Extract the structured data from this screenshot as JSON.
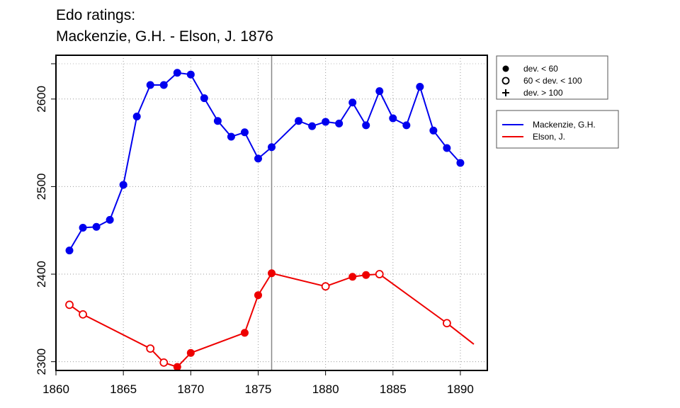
{
  "chart_data": {
    "type": "line",
    "title": "Edo ratings:",
    "subtitle": "Mackenzie, G.H. - Elson, J. 1876",
    "xlabel": "",
    "ylabel": "",
    "xlim": [
      1860,
      1892
    ],
    "ylim": [
      2290,
      2650
    ],
    "x_ticks": [
      1860,
      1865,
      1870,
      1875,
      1880,
      1885,
      1890
    ],
    "y_ticks": [
      2300,
      2400,
      2500,
      2600
    ],
    "grid": true,
    "vertical_marker_year": 1876,
    "legend_markers": [
      {
        "symbol": "filled-circle",
        "label": "dev. < 60"
      },
      {
        "symbol": "open-circle",
        "label": "60 < dev. < 100"
      },
      {
        "symbol": "plus",
        "label": "dev. > 100"
      }
    ],
    "legend_series_placement": "right, outside plot",
    "series": [
      {
        "name": "Mackenzie, G.H.",
        "color": "#0000ee",
        "points": [
          {
            "x": 1861,
            "y": 2427,
            "dev": "low"
          },
          {
            "x": 1862,
            "y": 2453,
            "dev": "low"
          },
          {
            "x": 1863,
            "y": 2454,
            "dev": "low"
          },
          {
            "x": 1864,
            "y": 2462,
            "dev": "low"
          },
          {
            "x": 1865,
            "y": 2502,
            "dev": "low"
          },
          {
            "x": 1866,
            "y": 2580,
            "dev": "low"
          },
          {
            "x": 1867,
            "y": 2616,
            "dev": "low"
          },
          {
            "x": 1868,
            "y": 2616,
            "dev": "low"
          },
          {
            "x": 1869,
            "y": 2630,
            "dev": "low"
          },
          {
            "x": 1870,
            "y": 2628,
            "dev": "low"
          },
          {
            "x": 1871,
            "y": 2601,
            "dev": "low"
          },
          {
            "x": 1872,
            "y": 2575,
            "dev": "low"
          },
          {
            "x": 1873,
            "y": 2557,
            "dev": "low"
          },
          {
            "x": 1874,
            "y": 2562,
            "dev": "low"
          },
          {
            "x": 1875,
            "y": 2532,
            "dev": "low"
          },
          {
            "x": 1876,
            "y": 2545,
            "dev": "low"
          },
          {
            "x": 1878,
            "y": 2575,
            "dev": "low"
          },
          {
            "x": 1879,
            "y": 2569,
            "dev": "low"
          },
          {
            "x": 1880,
            "y": 2574,
            "dev": "low"
          },
          {
            "x": 1881,
            "y": 2572,
            "dev": "low"
          },
          {
            "x": 1882,
            "y": 2596,
            "dev": "low"
          },
          {
            "x": 1883,
            "y": 2570,
            "dev": "low"
          },
          {
            "x": 1884,
            "y": 2609,
            "dev": "low"
          },
          {
            "x": 1885,
            "y": 2578,
            "dev": "low"
          },
          {
            "x": 1886,
            "y": 2570,
            "dev": "low"
          },
          {
            "x": 1887,
            "y": 2614,
            "dev": "low"
          },
          {
            "x": 1888,
            "y": 2564,
            "dev": "low"
          },
          {
            "x": 1889,
            "y": 2544,
            "dev": "low"
          },
          {
            "x": 1890,
            "y": 2527,
            "dev": "low"
          }
        ]
      },
      {
        "name": "Elson, J.",
        "color": "#ee0000",
        "points": [
          {
            "x": 1861,
            "y": 2365,
            "dev": "mid"
          },
          {
            "x": 1862,
            "y": 2354,
            "dev": "mid"
          },
          {
            "x": 1867,
            "y": 2315,
            "dev": "mid"
          },
          {
            "x": 1868,
            "y": 2299,
            "dev": "mid"
          },
          {
            "x": 1869,
            "y": 2294,
            "dev": "low"
          },
          {
            "x": 1870,
            "y": 2310,
            "dev": "low"
          },
          {
            "x": 1874,
            "y": 2333,
            "dev": "low"
          },
          {
            "x": 1875,
            "y": 2376,
            "dev": "low"
          },
          {
            "x": 1876,
            "y": 2401,
            "dev": "low"
          },
          {
            "x": 1880,
            "y": 2386,
            "dev": "mid"
          },
          {
            "x": 1882,
            "y": 2397,
            "dev": "low"
          },
          {
            "x": 1883,
            "y": 2399,
            "dev": "low"
          },
          {
            "x": 1884,
            "y": 2400,
            "dev": "mid"
          },
          {
            "x": 1889,
            "y": 2344,
            "dev": "mid"
          },
          {
            "x": 1891,
            "y": 2320,
            "dev": "none"
          }
        ]
      }
    ]
  }
}
